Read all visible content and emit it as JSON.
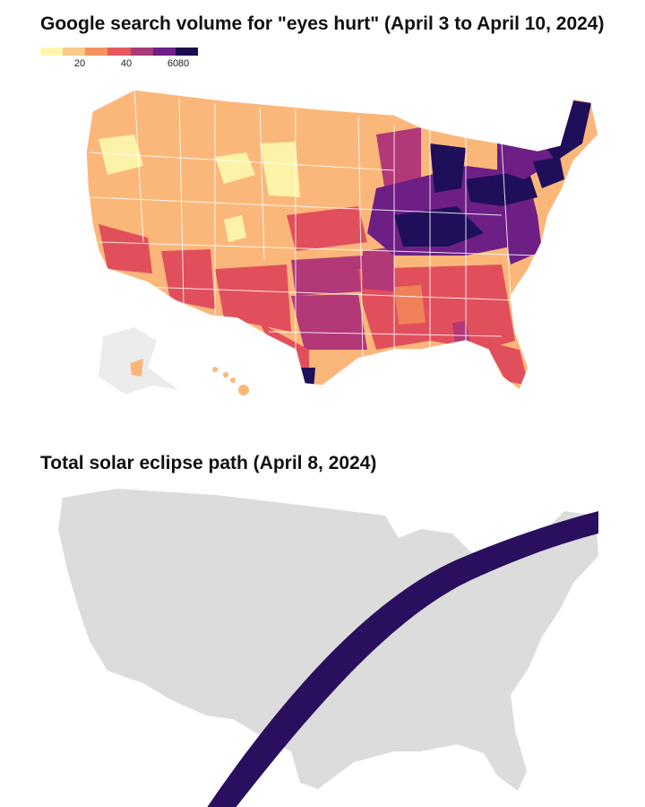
{
  "title_top": "Google search volume for \"eyes hurt\"  (April 3 to April 10, 2024)",
  "title_bottom": "Total solar eclipse path (April 8, 2024)",
  "legend": {
    "ticks": [
      "20",
      "40",
      "60",
      "80"
    ],
    "colors": [
      "#fdf6b0",
      "#fbc98a",
      "#f5925f",
      "#e8575e",
      "#a93a7a",
      "#6b1f87",
      "#1b0c4e"
    ]
  },
  "map_colors": {
    "very_low": "#fdf3a8",
    "low": "#fbb77a",
    "mid": "#f08058",
    "high": "#e24f5c",
    "higher": "#b23878",
    "very_high": "#6d1f86",
    "max": "#1f0f5a",
    "no_data": "#ececec",
    "land_grey": "#dcdcdc",
    "eclipse_path": "#2a0f5e"
  }
}
